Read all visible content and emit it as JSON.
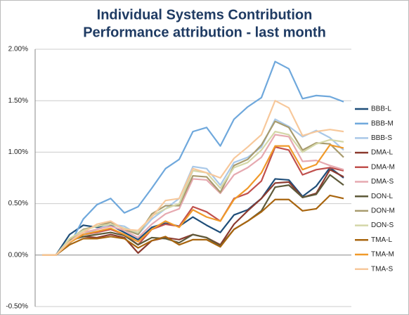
{
  "chart_data": {
    "type": "line",
    "title": "Individual Systems Contribution",
    "subtitle": "Performance attribution - last month",
    "categories": [
      null,
      null,
      null,
      null,
      null,
      null,
      null,
      null,
      null,
      null,
      null,
      null,
      null,
      null,
      null,
      null,
      null,
      null,
      null,
      null,
      null,
      null,
      null
    ],
    "ylim": [
      -0.5,
      2.0
    ],
    "yticks": [
      {
        "value": -0.5,
        "label": "-0.50%"
      },
      {
        "value": 0,
        "label": "0.00%"
      },
      {
        "value": 0.5,
        "label": "0.50%"
      },
      {
        "value": 1.0,
        "label": "1.00%"
      },
      {
        "value": 1.5,
        "label": "1.50%"
      },
      {
        "value": 2.0,
        "label": "2.00%"
      }
    ],
    "grid": true,
    "legend": "right",
    "series": [
      {
        "name": "BBB-L",
        "color": "#1f4e79",
        "values": [
          0,
          0,
          0.2,
          0.29,
          0.27,
          0.29,
          0.22,
          0.15,
          0.27,
          0.31,
          0.28,
          0.37,
          0.29,
          0.22,
          0.39,
          0.44,
          0.55,
          0.74,
          0.73,
          0.57,
          0.67,
          0.85,
          0.75
        ]
      },
      {
        "name": "BBB-M",
        "color": "#6fa8dc",
        "values": [
          0,
          0,
          0.1,
          0.35,
          0.49,
          0.55,
          0.41,
          0.47,
          0.65,
          0.84,
          0.93,
          1.2,
          1.24,
          1.06,
          1.32,
          1.44,
          1.53,
          1.88,
          1.81,
          1.52,
          1.55,
          1.54,
          1.49
        ]
      },
      {
        "name": "BBB-S",
        "color": "#a9c8e8",
        "values": [
          0,
          0,
          0.12,
          0.2,
          0.25,
          0.3,
          0.28,
          0.2,
          0.35,
          0.45,
          0.55,
          0.86,
          0.84,
          0.68,
          0.9,
          0.95,
          1.05,
          1.32,
          1.25,
          1.15,
          1.21,
          1.14,
          1.02
        ]
      },
      {
        "name": "DMA-L",
        "color": "#8b3a2f",
        "values": [
          0,
          0,
          0.15,
          0.18,
          0.17,
          0.2,
          0.17,
          0.02,
          0.14,
          0.17,
          0.15,
          0.2,
          0.17,
          0.1,
          0.3,
          0.43,
          0.55,
          0.7,
          0.71,
          0.56,
          0.6,
          0.83,
          0.76
        ]
      },
      {
        "name": "DMA-M",
        "color": "#c0504d",
        "values": [
          0,
          0,
          0.13,
          0.2,
          0.22,
          0.25,
          0.2,
          0.1,
          0.25,
          0.3,
          0.28,
          0.47,
          0.42,
          0.33,
          0.55,
          0.6,
          0.72,
          1.05,
          1.02,
          0.78,
          0.83,
          0.85,
          0.82
        ]
      },
      {
        "name": "DMA-S",
        "color": "#e6a9b0",
        "values": [
          0,
          0,
          0.15,
          0.22,
          0.25,
          0.28,
          0.24,
          0.17,
          0.3,
          0.4,
          0.45,
          0.74,
          0.73,
          0.6,
          0.78,
          0.85,
          0.95,
          1.17,
          1.15,
          0.91,
          0.92,
          0.87,
          0.83
        ]
      },
      {
        "name": "DON-L",
        "color": "#5e5a3a",
        "values": [
          0,
          0,
          0.14,
          0.18,
          0.2,
          0.22,
          0.19,
          0.1,
          0.17,
          0.16,
          0.12,
          0.2,
          0.17,
          0.09,
          0.25,
          0.33,
          0.43,
          0.66,
          0.68,
          0.56,
          0.59,
          0.78,
          0.68
        ]
      },
      {
        "name": "DON-M",
        "color": "#a89b6e",
        "values": [
          0,
          0,
          0.15,
          0.25,
          0.28,
          0.32,
          0.25,
          0.2,
          0.4,
          0.48,
          0.48,
          0.77,
          0.76,
          0.61,
          0.87,
          0.93,
          1.07,
          1.3,
          1.24,
          1.02,
          1.09,
          1.08,
          0.95
        ]
      },
      {
        "name": "DON-S",
        "color": "#d4d7a8",
        "values": [
          0,
          0,
          0.16,
          0.24,
          0.28,
          0.3,
          0.26,
          0.22,
          0.38,
          0.45,
          0.5,
          0.82,
          0.8,
          0.65,
          0.85,
          0.9,
          1.02,
          1.2,
          1.17,
          1.0,
          1.08,
          1.12,
          1.1
        ]
      },
      {
        "name": "TMA-L",
        "color": "#a8650f",
        "values": [
          0,
          0,
          0.1,
          0.16,
          0.16,
          0.18,
          0.16,
          0.07,
          0.14,
          0.18,
          0.1,
          0.15,
          0.15,
          0.08,
          0.25,
          0.33,
          0.42,
          0.54,
          0.54,
          0.43,
          0.45,
          0.58,
          0.55
        ]
      },
      {
        "name": "TMA-M",
        "color": "#f09a2a",
        "values": [
          0,
          0,
          0.12,
          0.2,
          0.23,
          0.26,
          0.2,
          0.13,
          0.25,
          0.33,
          0.27,
          0.44,
          0.37,
          0.33,
          0.54,
          0.65,
          0.8,
          1.06,
          1.06,
          0.83,
          0.88,
          1.07,
          1.04
        ]
      },
      {
        "name": "TMA-S",
        "color": "#f7c89b",
        "values": [
          0,
          0,
          0.13,
          0.22,
          0.3,
          0.33,
          0.25,
          0.24,
          0.37,
          0.53,
          0.55,
          0.84,
          0.8,
          0.75,
          0.94,
          1.05,
          1.17,
          1.5,
          1.43,
          1.16,
          1.2,
          1.22,
          1.2
        ]
      }
    ]
  }
}
